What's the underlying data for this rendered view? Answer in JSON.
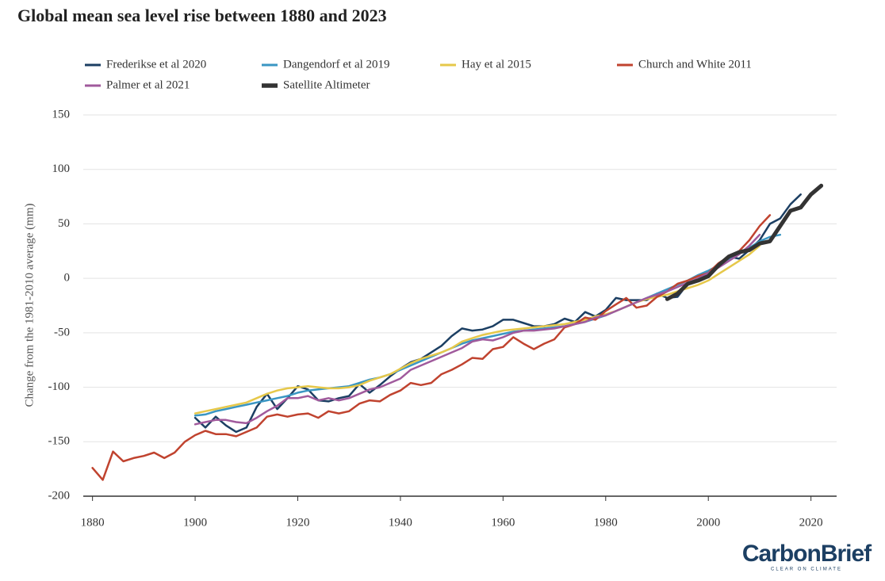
{
  "chart_data": {
    "type": "line",
    "title": "Global mean sea level rise between 1880 and 2023",
    "y_label": "Change from the 1981-2010 average (mm)",
    "logo": "CarbonBrief",
    "logo_tagline": "CLEAR ON CLIMATE",
    "grid": true,
    "xlim": [
      1878.2,
      2025
    ],
    "xticks": [
      1880,
      1900,
      1920,
      1940,
      1960,
      1980,
      2000,
      2020
    ],
    "ylim": [
      -200,
      150
    ],
    "yticks": [
      -200,
      -150,
      -100,
      -50,
      0,
      50,
      100,
      150
    ],
    "x": [
      1880,
      1882,
      1884,
      1886,
      1888,
      1890,
      1892,
      1894,
      1896,
      1898,
      1900,
      1902,
      1904,
      1906,
      1908,
      1910,
      1912,
      1914,
      1916,
      1918,
      1920,
      1922,
      1924,
      1926,
      1928,
      1930,
      1932,
      1934,
      1936,
      1938,
      1940,
      1942,
      1944,
      1946,
      1948,
      1950,
      1952,
      1954,
      1956,
      1958,
      1960,
      1962,
      1964,
      1966,
      1968,
      1970,
      1972,
      1974,
      1976,
      1978,
      1980,
      1982,
      1984,
      1986,
      1988,
      1990,
      1992,
      1994,
      1996,
      1998,
      2000,
      2002,
      2004,
      2006,
      2008,
      2010,
      2012,
      2014,
      2016,
      2018,
      2020,
      2022
    ],
    "series": [
      {
        "name": "Frederikse et al 2020",
        "color": "#1c3f63",
        "width": 2.5,
        "values": [
          null,
          null,
          null,
          null,
          null,
          null,
          null,
          null,
          null,
          null,
          -128,
          -137,
          -127,
          -135,
          -141,
          -137,
          -118,
          -106,
          -120,
          -110,
          -99,
          -102,
          -112,
          -113,
          -110,
          -108,
          -97,
          -105,
          -98,
          -90,
          -83,
          -77,
          -74,
          -68,
          -62,
          -53,
          -46,
          -48,
          -47,
          -44,
          -38,
          -38,
          -41,
          -44,
          -44,
          -42,
          -37,
          -40,
          -31,
          -35,
          -29,
          -18,
          -20,
          -20,
          -20,
          -14,
          -18,
          -17,
          -5,
          -2,
          6,
          12,
          20,
          18,
          26,
          35,
          50,
          55,
          68,
          77,
          null,
          null
        ]
      },
      {
        "name": "Dangendorf et al 2019",
        "color": "#3a96c3",
        "width": 2.5,
        "values": [
          null,
          null,
          null,
          null,
          null,
          null,
          null,
          null,
          null,
          null,
          -126,
          -125,
          -122,
          -120,
          -118,
          -116,
          -114,
          -112,
          -110,
          -108,
          -105,
          -103,
          -102,
          -101,
          -100,
          -99,
          -96,
          -93,
          -91,
          -88,
          -84,
          -80,
          -76,
          -72,
          -68,
          -64,
          -60,
          -57,
          -55,
          -53,
          -51,
          -49,
          -48,
          -47,
          -46,
          -45,
          -44,
          -42,
          -40,
          -37,
          -34,
          -30,
          -26,
          -22,
          -18,
          -14,
          -10,
          -6,
          -2,
          3,
          7,
          12,
          18,
          24,
          28,
          34,
          38,
          40,
          null,
          null,
          null,
          null
        ]
      },
      {
        "name": "Hay et al 2015",
        "color": "#e6c84a",
        "width": 2.5,
        "values": [
          null,
          null,
          null,
          null,
          null,
          null,
          null,
          null,
          null,
          null,
          -124,
          -122,
          -120,
          -118,
          -116,
          -114,
          -110,
          -106,
          -103,
          -101,
          -100,
          -99,
          -100,
          -101,
          -101,
          -100,
          -98,
          -94,
          -91,
          -88,
          -83,
          -78,
          -74,
          -71,
          -68,
          -64,
          -58,
          -55,
          -52,
          -50,
          -48,
          -47,
          -46,
          -45,
          -44,
          -43,
          -42,
          -40,
          -38,
          -35,
          -33,
          -30,
          -26,
          -22,
          -19,
          -17,
          -15,
          -12,
          -9,
          -6,
          -2,
          4,
          10,
          16,
          22,
          30,
          null,
          null,
          null,
          null,
          null,
          null
        ]
      },
      {
        "name": "Church and White 2011",
        "color": "#c0432f",
        "width": 2.5,
        "values": [
          -174,
          -185,
          -159,
          -168,
          -165,
          -163,
          -160,
          -165,
          -160,
          -150,
          -144,
          -140,
          -143,
          -143,
          -145,
          -141,
          -137,
          -127,
          -125,
          -127,
          -125,
          -124,
          -128,
          -122,
          -124,
          -122,
          -115,
          -112,
          -113,
          -107,
          -103,
          -96,
          -98,
          -96,
          -88,
          -84,
          -79,
          -73,
          -74,
          -65,
          -63,
          -54,
          -60,
          -65,
          -60,
          -56,
          -45,
          -42,
          -36,
          -38,
          -30,
          -24,
          -18,
          -27,
          -25,
          -17,
          -12,
          -5,
          -2,
          2,
          5,
          14,
          20,
          25,
          35,
          48,
          58,
          null,
          null,
          null,
          null,
          null
        ]
      },
      {
        "name": "Palmer et al 2021",
        "color": "#a05a9c",
        "width": 2.5,
        "values": [
          null,
          null,
          null,
          null,
          null,
          null,
          null,
          null,
          null,
          null,
          -134,
          -132,
          -130,
          -130,
          -132,
          -133,
          -128,
          -122,
          -117,
          -110,
          -110,
          -108,
          -112,
          -110,
          -112,
          -110,
          -106,
          -102,
          -100,
          -96,
          -92,
          -84,
          -80,
          -76,
          -72,
          -68,
          -64,
          -58,
          -56,
          -57,
          -54,
          -50,
          -48,
          -48,
          -47,
          -46,
          -44,
          -42,
          -40,
          -36,
          -34,
          -30,
          -26,
          -22,
          -18,
          -15,
          -12,
          -8,
          -4,
          0,
          5,
          10,
          16,
          22,
          30,
          40,
          null,
          null,
          null,
          null,
          null,
          null
        ]
      },
      {
        "name": "Satellite Altimeter",
        "color": "#333333",
        "width": 5,
        "values": [
          null,
          null,
          null,
          null,
          null,
          null,
          null,
          null,
          null,
          null,
          null,
          null,
          null,
          null,
          null,
          null,
          null,
          null,
          null,
          null,
          null,
          null,
          null,
          null,
          null,
          null,
          null,
          null,
          null,
          null,
          null,
          null,
          null,
          null,
          null,
          null,
          null,
          null,
          null,
          null,
          null,
          null,
          null,
          null,
          null,
          null,
          null,
          null,
          null,
          null,
          null,
          null,
          null,
          null,
          null,
          null,
          -19,
          -14,
          -5,
          -2,
          2,
          12,
          20,
          24,
          26,
          32,
          34,
          48,
          62,
          65,
          77,
          85
        ]
      }
    ]
  }
}
